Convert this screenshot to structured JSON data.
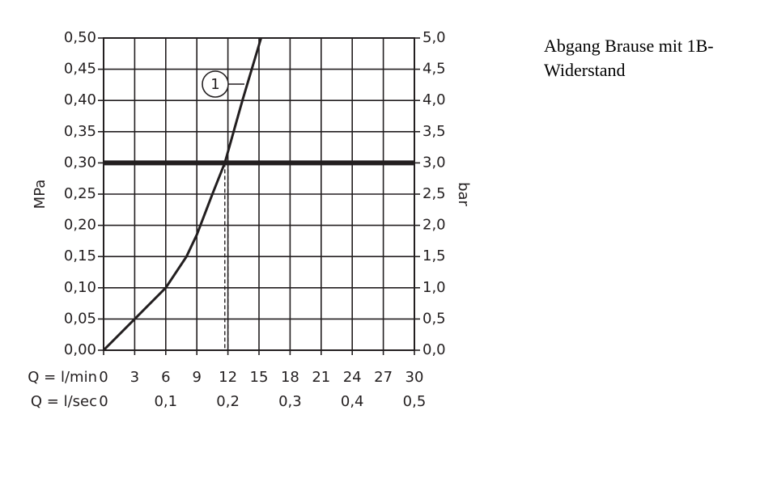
{
  "chart_data": {
    "type": "line",
    "ylabel": "MPa",
    "y2label": "bar",
    "xrow_label": "Q = l/min",
    "x2row_label": "Q = l/sec",
    "x": [
      0,
      3,
      6,
      8,
      9,
      10.5,
      11.7,
      13.4,
      15.2
    ],
    "values": [
      0,
      0.05,
      0.1,
      0.15,
      0.185,
      0.25,
      0.3,
      0.4,
      0.5
    ],
    "color": "#231f20",
    "xlim": [
      0,
      30
    ],
    "xticks": [
      0,
      3,
      6,
      9,
      12,
      15,
      18,
      21,
      24,
      27,
      30
    ],
    "x2lim": [
      0,
      0.5
    ],
    "x2ticks": [
      0,
      {
        "value": 0.1,
        "label": "0,1"
      },
      {
        "value": 0.2,
        "label": "0,2"
      },
      {
        "value": 0.3,
        "label": "0,3"
      },
      {
        "value": 0.4,
        "label": "0,4"
      },
      {
        "value": 0.5,
        "label": "0,5"
      }
    ],
    "ylim": [
      0,
      0.5
    ],
    "yticks": [
      {
        "value": 0,
        "label": "0,00"
      },
      {
        "value": 0.05,
        "label": "0,05"
      },
      {
        "value": 0.1,
        "label": "0,10"
      },
      {
        "value": 0.15,
        "label": "0,15"
      },
      {
        "value": 0.2,
        "label": "0,20"
      },
      {
        "value": 0.25,
        "label": "0,25"
      },
      {
        "value": 0.3,
        "label": "0,30"
      },
      {
        "value": 0.35,
        "label": "0,35"
      },
      {
        "value": 0.4,
        "label": "0,40"
      },
      {
        "value": 0.45,
        "label": "0,45"
      },
      {
        "value": 0.5,
        "label": "0,50"
      }
    ],
    "y2lim": [
      0,
      5
    ],
    "y2ticks": [
      {
        "value": 0,
        "label": "0,0"
      },
      {
        "value": 0.5,
        "label": "0,5"
      },
      {
        "value": 1,
        "label": "1,0"
      },
      {
        "value": 1.5,
        "label": "1,5"
      },
      {
        "value": 2,
        "label": "2,0"
      },
      {
        "value": 2.5,
        "label": "2,5"
      },
      {
        "value": 3,
        "label": "3,0"
      },
      {
        "value": 3.5,
        "label": "3,5"
      },
      {
        "value": 4,
        "label": "4,0"
      },
      {
        "value": 4.5,
        "label": "4,5"
      },
      {
        "value": 5,
        "label": "5,0"
      }
    ],
    "grid": true,
    "threshold": 0.3,
    "operating_point": {
      "x": 11.7,
      "y": 0.3
    },
    "annotation": "1"
  },
  "side_text": "Abgang Brause mit 1B-Widerstand"
}
